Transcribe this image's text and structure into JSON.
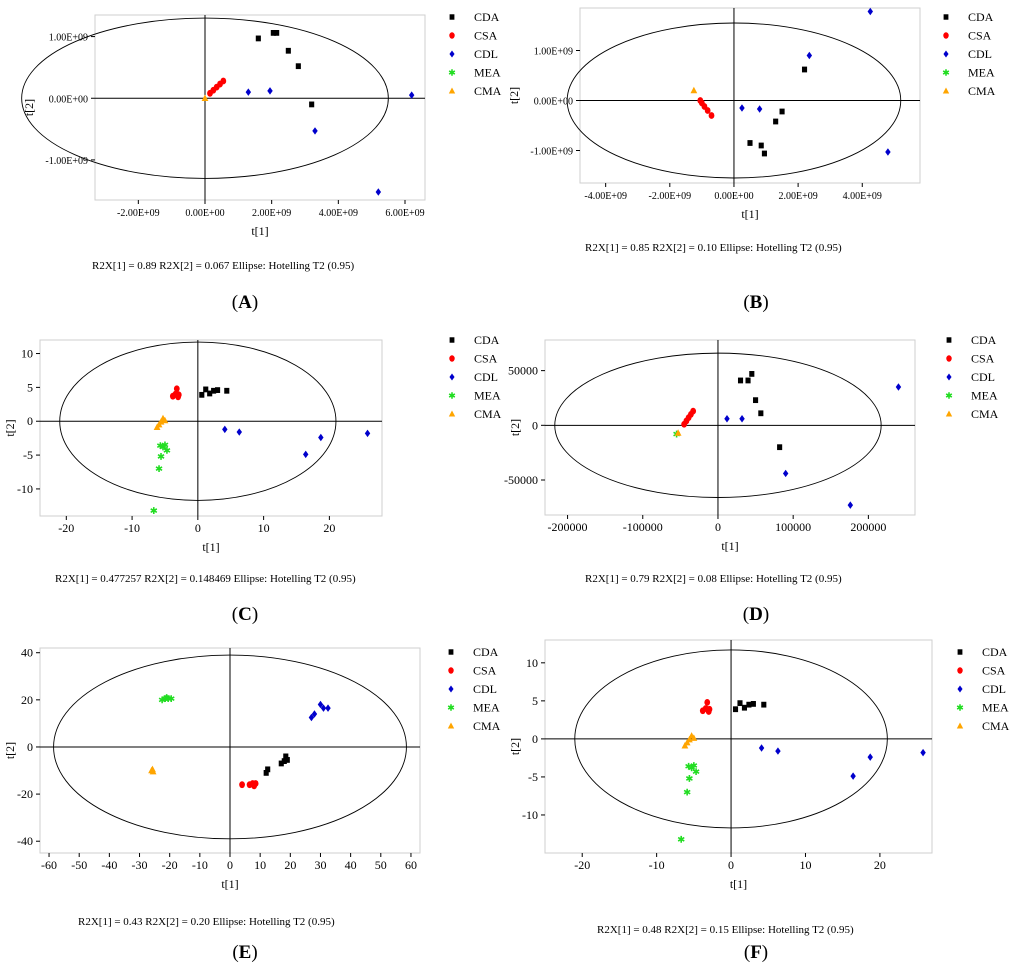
{
  "legend_labels": [
    "CDA",
    "CSA",
    "CDL",
    "MEA",
    "CMA"
  ],
  "colors": {
    "CDA": "#000000",
    "CSA": "#ff0000",
    "CDL": "#0000cc",
    "MEA": "#22dd22",
    "CMA": "#ffa500",
    "plot_border": "#cfcfcf",
    "axis": "#000000",
    "ellipse": "#000000"
  },
  "chart_data": [
    {
      "type": "scatter",
      "panel_label": "A",
      "xlabel": "t[1]",
      "ylabel": "t[2]",
      "xlim": [
        -3300000000.0,
        6600000000.0
      ],
      "ylim": [
        -1650000000.0,
        1350000000.0
      ],
      "xticks": [
        -2000000000.0,
        0,
        2000000000.0,
        4000000000.0,
        6000000000.0
      ],
      "xtick_labels": [
        "-2.00E+09",
        "0.00E+00",
        "2.00E+09",
        "4.00E+09",
        "6.00E+09"
      ],
      "yticks": [
        -1000000000.0,
        0,
        1000000000.0
      ],
      "ytick_labels": [
        "-1.00E+09",
        "0.00E+00",
        "1.00E+09"
      ],
      "ellipse": {
        "rx": 5500000000.0,
        "ry": 1300000000.0
      },
      "footer": "R2X[1] = 0.89   R2X[2] = 0.067   Ellipse: Hotelling T2 (0.95)",
      "series": [
        {
          "name": "CDA",
          "points": [
            [
              1600000000.0,
              970000000.0
            ],
            [
              2050000000.0,
              1060000000.0
            ],
            [
              2150000000.0,
              1060000000.0
            ],
            [
              2500000000.0,
              770000000.0
            ],
            [
              2800000000.0,
              520000000.0
            ],
            [
              3200000000.0,
              -100000000.0
            ]
          ]
        },
        {
          "name": "CSA",
          "points": [
            [
              150000000.0,
              80000000.0
            ],
            [
              250000000.0,
              130000000.0
            ],
            [
              350000000.0,
              180000000.0
            ],
            [
              450000000.0,
              230000000.0
            ],
            [
              550000000.0,
              280000000.0
            ]
          ]
        },
        {
          "name": "CDL",
          "points": [
            [
              1300000000.0,
              100000000.0
            ],
            [
              1950000000.0,
              120000000.0
            ],
            [
              3300000000.0,
              -530000000.0
            ],
            [
              5200000000.0,
              -1520000000.0
            ],
            [
              6200000000.0,
              50000000.0
            ]
          ]
        },
        {
          "name": "MEA",
          "points": []
        },
        {
          "name": "CMA",
          "points": [
            [
              0.0,
              0.0
            ]
          ]
        }
      ]
    },
    {
      "type": "scatter",
      "panel_label": "B",
      "xlabel": "t[1]",
      "ylabel": "t[2]",
      "xlim": [
        -4800000000.0,
        5800000000.0
      ],
      "ylim": [
        -1650000000.0,
        1850000000.0
      ],
      "xticks": [
        -4000000000.0,
        -2000000000.0,
        0,
        2000000000.0,
        4000000000.0
      ],
      "xtick_labels": [
        "-4.00E+09",
        "-2.00E+09",
        "0.00E+00",
        "2.00E+09",
        "4.00E+09"
      ],
      "yticks": [
        -1000000000.0,
        0,
        1000000000.0
      ],
      "ytick_labels": [
        "-1.00E+09",
        "0.00E+00",
        "1.00E+09"
      ],
      "ellipse": {
        "rx": 5200000000.0,
        "ry": 1550000000.0
      },
      "footer": "R2X[1] = 0.85   R2X[2] = 0.10   Ellipse: Hotelling T2 (0.95)",
      "series": [
        {
          "name": "CDA",
          "points": [
            [
              500000000.0,
              -850000000.0
            ],
            [
              850000000.0,
              -900000000.0
            ],
            [
              950000000.0,
              -1060000000.0
            ],
            [
              1300000000.0,
              -420000000.0
            ],
            [
              1500000000.0,
              -220000000.0
            ],
            [
              2200000000.0,
              620000000.0
            ]
          ]
        },
        {
          "name": "CSA",
          "points": [
            [
              -1050000000.0,
              0.0
            ],
            [
              -1000000000.0,
              -50000000.0
            ],
            [
              -920000000.0,
              -120000000.0
            ],
            [
              -820000000.0,
              -200000000.0
            ],
            [
              -700000000.0,
              -300000000.0
            ]
          ]
        },
        {
          "name": "CDL",
          "points": [
            [
              250000000.0,
              -150000000.0
            ],
            [
              800000000.0,
              -170000000.0
            ],
            [
              2350000000.0,
              900000000.0
            ],
            [
              4250000000.0,
              1780000000.0
            ],
            [
              4800000000.0,
              -1030000000.0
            ]
          ]
        },
        {
          "name": "MEA",
          "points": []
        },
        {
          "name": "CMA",
          "points": [
            [
              -1250000000.0,
              200000000.0
            ]
          ]
        }
      ]
    },
    {
      "type": "scatter",
      "panel_label": "C",
      "xlabel": "t[1]",
      "ylabel": "t[2]",
      "xlim": [
        -24,
        28
      ],
      "ylim": [
        -14,
        12
      ],
      "xticks": [
        -20,
        -10,
        0,
        10,
        20
      ],
      "xtick_labels": [
        "-20",
        "-10",
        "0",
        "10",
        "20"
      ],
      "yticks": [
        -10,
        -5,
        0,
        5,
        10
      ],
      "ytick_labels": [
        "-10",
        "-5",
        "0",
        "5",
        "10"
      ],
      "ellipse": {
        "rx": 21,
        "ry": 11.7
      },
      "footer": "R2X[1] = 0.477257    R2X[2] = 0.148469    Ellipse: Hotelling T2 (0.95)",
      "series": [
        {
          "name": "CDA",
          "points": [
            [
              0.6,
              3.9
            ],
            [
              1.2,
              4.7
            ],
            [
              1.8,
              4.1
            ],
            [
              2.4,
              4.5
            ],
            [
              3.0,
              4.6
            ],
            [
              4.4,
              4.5
            ]
          ]
        },
        {
          "name": "CSA",
          "points": [
            [
              -3.8,
              3.7
            ],
            [
              -3.4,
              4.0
            ],
            [
              -3.2,
              4.8
            ],
            [
              -3.0,
              3.6
            ],
            [
              -2.9,
              3.9
            ]
          ]
        },
        {
          "name": "CDL",
          "points": [
            [
              4.1,
              -1.2
            ],
            [
              6.3,
              -1.6
            ],
            [
              16.4,
              -4.9
            ],
            [
              18.7,
              -2.4
            ],
            [
              25.8,
              -1.8
            ]
          ]
        },
        {
          "name": "MEA",
          "points": [
            [
              -5.9,
              -7.0
            ],
            [
              -5.6,
              -5.2
            ],
            [
              -5.3,
              -3.8
            ],
            [
              -5.0,
              -3.5
            ],
            [
              -4.7,
              -4.3
            ],
            [
              -5.7,
              -3.6
            ],
            [
              -6.7,
              -13.2
            ]
          ]
        },
        {
          "name": "CMA",
          "points": [
            [
              -6.2,
              -0.9
            ],
            [
              -5.9,
              -0.5
            ],
            [
              -5.6,
              -0.1
            ],
            [
              -5.3,
              0.4
            ],
            [
              -5.0,
              0.1
            ]
          ]
        }
      ]
    },
    {
      "type": "scatter",
      "panel_label": "D",
      "xlabel": "t[1]",
      "ylabel": "t[2]",
      "xlim": [
        -230000,
        262000
      ],
      "ylim": [
        -82000,
        78000
      ],
      "xticks": [
        -200000,
        -100000,
        0,
        100000,
        200000
      ],
      "xtick_labels": [
        "-200000",
        "-100000",
        "0",
        "100000",
        "200000"
      ],
      "yticks": [
        -50000,
        0,
        50000
      ],
      "ytick_labels": [
        "-50000",
        "0",
        "50000"
      ],
      "ellipse": {
        "rx": 217000,
        "ry": 66000
      },
      "footer": "R2X[1] = 0.79    R2X[2] = 0.08    Ellipse: Hotelling T2 (0.95)",
      "series": [
        {
          "name": "CDA",
          "points": [
            [
              30000,
              41000
            ],
            [
              40000,
              41000
            ],
            [
              45000,
              47000
            ],
            [
              50000,
              23000
            ],
            [
              57000,
              11000
            ],
            [
              82000,
              -20000
            ]
          ]
        },
        {
          "name": "CSA",
          "points": [
            [
              -45000,
              1000
            ],
            [
              -42000,
              4000
            ],
            [
              -39000,
              7000
            ],
            [
              -36000,
              10000
            ],
            [
              -33000,
              13000
            ]
          ]
        },
        {
          "name": "CDL",
          "points": [
            [
              12000,
              6000
            ],
            [
              32000,
              6000
            ],
            [
              90000,
              -44000
            ],
            [
              176000,
              -73000
            ],
            [
              240000,
              35000
            ]
          ]
        },
        {
          "name": "MEA",
          "points": [
            [
              -55000,
              -8000
            ]
          ]
        },
        {
          "name": "CMA",
          "points": [
            [
              -53000,
              -7000
            ]
          ]
        }
      ]
    },
    {
      "type": "scatter",
      "panel_label": "E",
      "xlabel": "t[1]",
      "ylabel": "t[2]",
      "xlim": [
        -63,
        63
      ],
      "ylim": [
        -45,
        42
      ],
      "xticks": [
        -60,
        -50,
        -40,
        -30,
        -20,
        -10,
        0,
        10,
        20,
        30,
        40,
        50,
        60
      ],
      "xtick_labels": [
        "-60",
        "-50",
        "-40",
        "-30",
        "-20",
        "-10",
        "0",
        "10",
        "20",
        "30",
        "40",
        "50",
        "60"
      ],
      "yticks": [
        -40,
        -20,
        0,
        20,
        40
      ],
      "ytick_labels": [
        "-40",
        "-20",
        "0",
        "20",
        "40"
      ],
      "ellipse": {
        "rx": 58.5,
        "ry": 39
      },
      "footer": "R2X[1] = 0.43    R2X[2] = 0.20    Ellipse: Hotelling T2 (0.95)",
      "series": [
        {
          "name": "CDA",
          "points": [
            [
              12,
              -11
            ],
            [
              12.5,
              -9.5
            ],
            [
              17,
              -7
            ],
            [
              18,
              -6
            ],
            [
              18.5,
              -4
            ],
            [
              19,
              -5.5
            ]
          ]
        },
        {
          "name": "CSA",
          "points": [
            [
              4,
              -16
            ],
            [
              6.5,
              -16
            ],
            [
              7.5,
              -15.5
            ],
            [
              8,
              -16.5
            ],
            [
              8.5,
              -15.5
            ]
          ]
        },
        {
          "name": "CDL",
          "points": [
            [
              27,
              12.5
            ],
            [
              28,
              14
            ],
            [
              30,
              18
            ],
            [
              31,
              16.5
            ],
            [
              32.5,
              16.5
            ]
          ]
        },
        {
          "name": "MEA",
          "points": [
            [
              -22.5,
              20
            ],
            [
              -21.5,
              20.5
            ],
            [
              -21,
              21
            ],
            [
              -20.5,
              20.5
            ],
            [
              -19.5,
              20.5
            ]
          ]
        },
        {
          "name": "CMA",
          "points": [
            [
              -26,
              -10
            ],
            [
              -25.7,
              -9.5
            ],
            [
              -25.5,
              -10.5
            ]
          ]
        }
      ]
    },
    {
      "type": "scatter",
      "panel_label": "F",
      "xlabel": "t[1]",
      "ylabel": "t[2]",
      "xlim": [
        -25,
        27
      ],
      "ylim": [
        -15,
        13
      ],
      "xticks": [
        -20,
        -10,
        0,
        10,
        20
      ],
      "xtick_labels": [
        "-20",
        "-10",
        "0",
        "10",
        "20"
      ],
      "yticks": [
        -10,
        -5,
        0,
        5,
        10
      ],
      "ytick_labels": [
        "-10",
        "-5",
        "0",
        "5",
        "10"
      ],
      "ellipse": {
        "rx": 21,
        "ry": 11.7
      },
      "footer": "R2X[1] = 0.48    R2X[2] = 0.15    Ellipse: Hotelling T2 (0.95)",
      "series": [
        {
          "name": "CDA",
          "points": [
            [
              0.6,
              3.9
            ],
            [
              1.2,
              4.7
            ],
            [
              1.8,
              4.1
            ],
            [
              2.4,
              4.5
            ],
            [
              3.0,
              4.6
            ],
            [
              4.4,
              4.5
            ]
          ]
        },
        {
          "name": "CSA",
          "points": [
            [
              -3.8,
              3.7
            ],
            [
              -3.4,
              4.0
            ],
            [
              -3.2,
              4.8
            ],
            [
              -3.0,
              3.6
            ],
            [
              -2.9,
              3.9
            ]
          ]
        },
        {
          "name": "CDL",
          "points": [
            [
              4.1,
              -1.2
            ],
            [
              6.3,
              -1.6
            ],
            [
              16.4,
              -4.9
            ],
            [
              18.7,
              -2.4
            ],
            [
              25.8,
              -1.8
            ]
          ]
        },
        {
          "name": "MEA",
          "points": [
            [
              -5.9,
              -7.0
            ],
            [
              -5.6,
              -5.2
            ],
            [
              -5.3,
              -3.8
            ],
            [
              -5.0,
              -3.5
            ],
            [
              -4.7,
              -4.3
            ],
            [
              -5.7,
              -3.6
            ],
            [
              -6.7,
              -13.2
            ]
          ]
        },
        {
          "name": "CMA",
          "points": [
            [
              -6.2,
              -0.9
            ],
            [
              -5.9,
              -0.5
            ],
            [
              -5.6,
              -0.1
            ],
            [
              -5.3,
              0.4
            ],
            [
              -5.0,
              0.1
            ]
          ]
        }
      ]
    }
  ]
}
